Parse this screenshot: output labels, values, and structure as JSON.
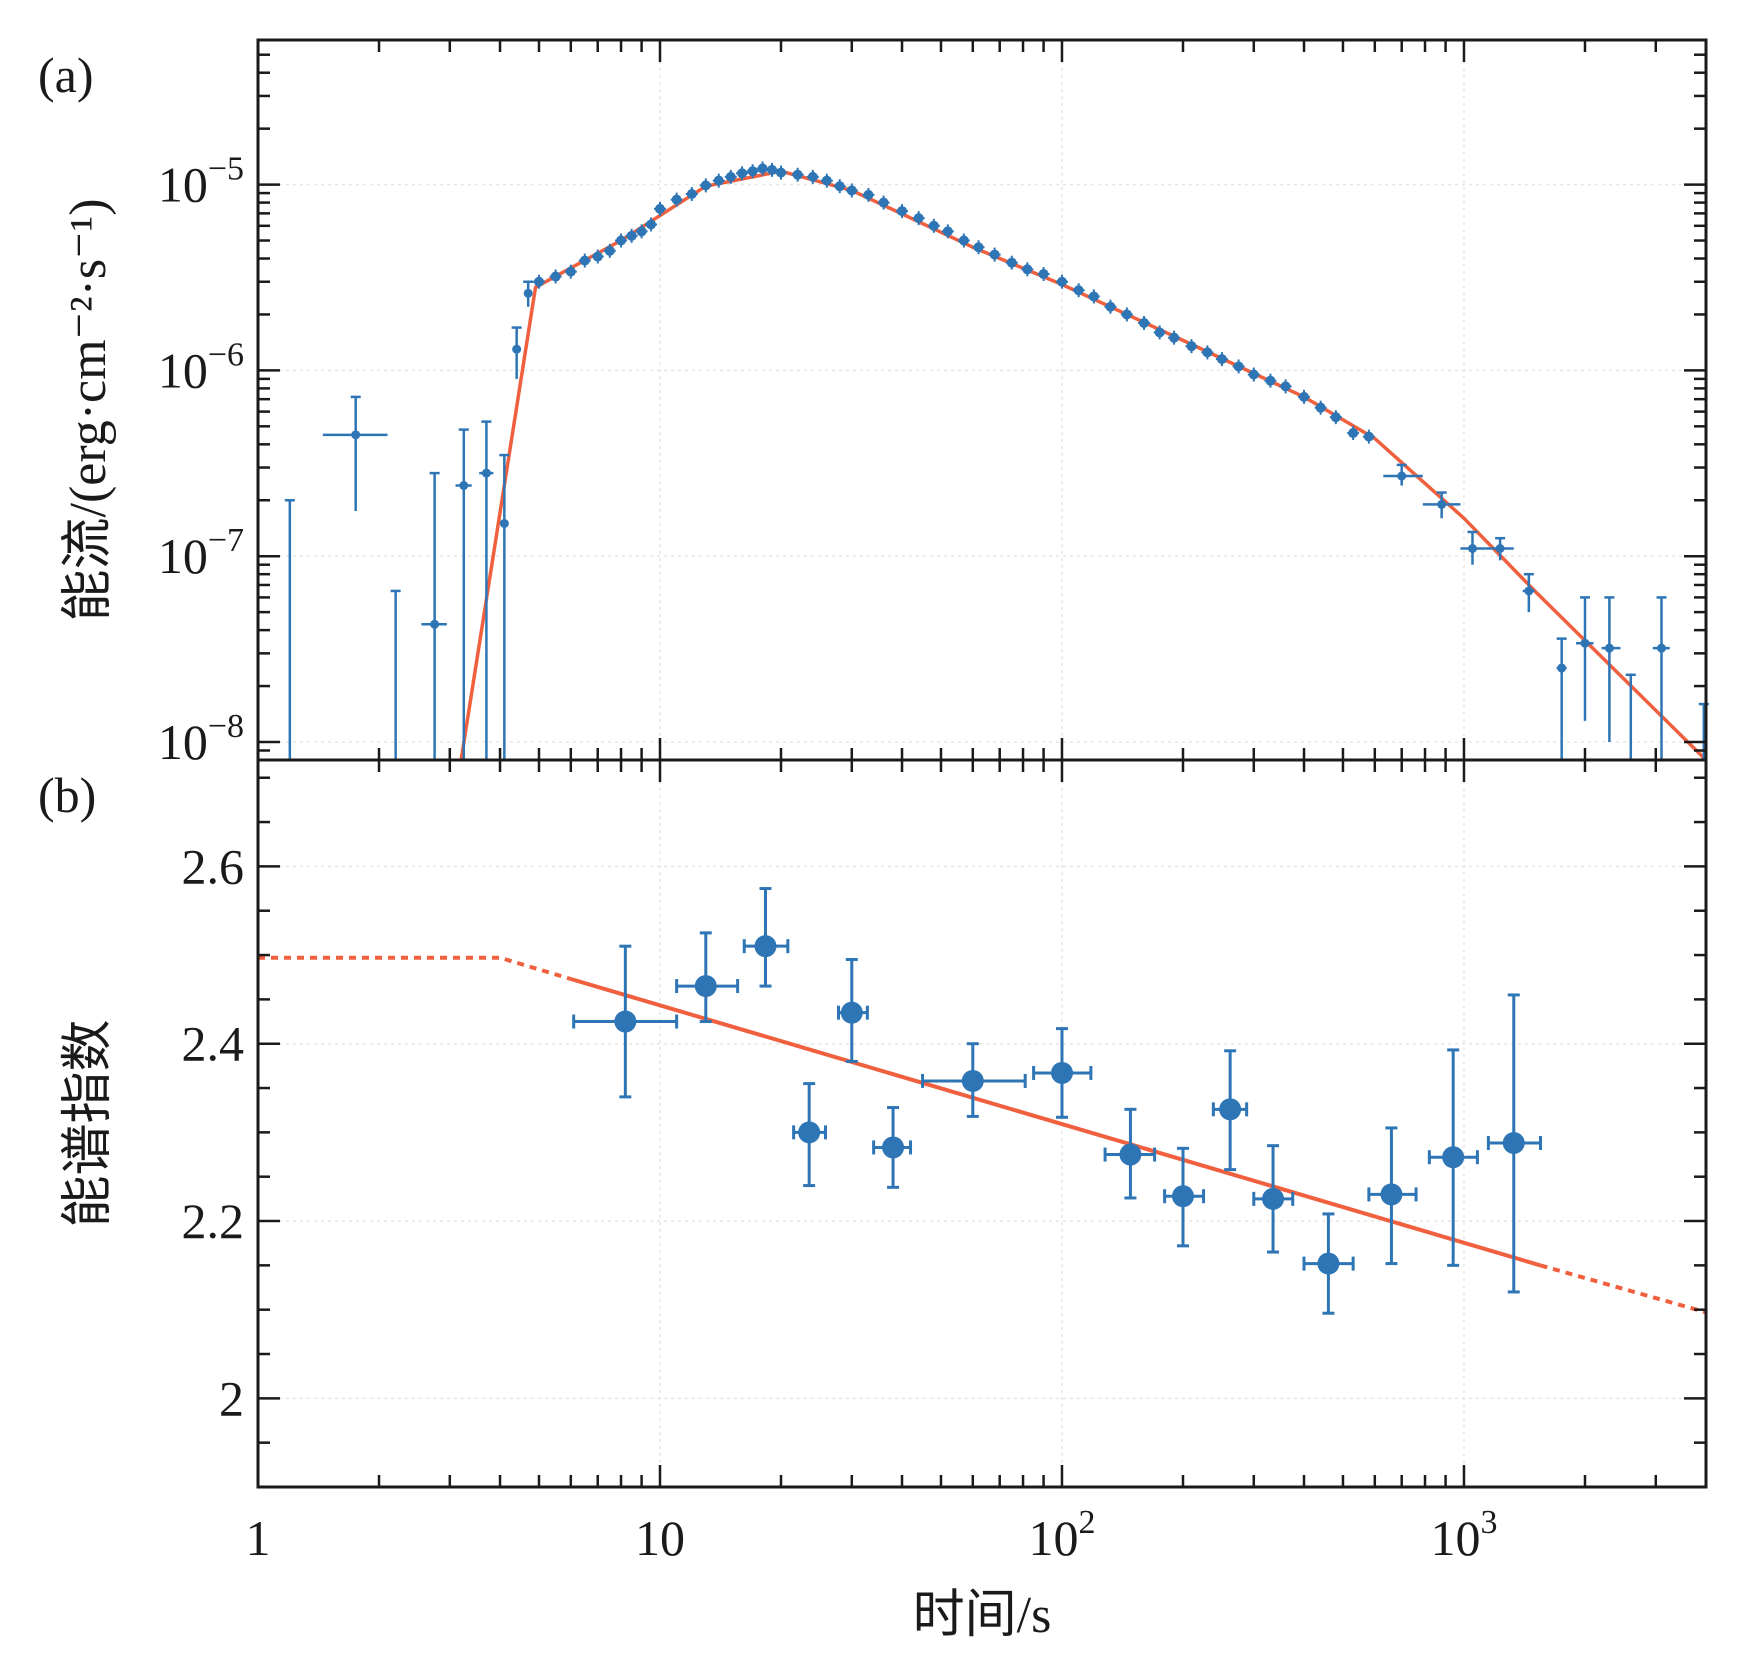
{
  "colors": {
    "data": "#2e75b6",
    "model": "#f0603f",
    "axis": "#1a1a1a",
    "grid": "#e6e6e6"
  },
  "chart_data": [
    {
      "panel": "a",
      "panel_tag": "(a)",
      "type": "scatter",
      "x_scale": "log",
      "y_scale": "log",
      "xlim": [
        1,
        4000
      ],
      "ylim": [
        8e-09,
        6e-05
      ],
      "ylabel": "能流/(erg·cm⁻²·s⁻¹)",
      "xlabel": "",
      "grid": true,
      "y_ticks": [
        {
          "value": 1e-05,
          "base": "10",
          "exp": "−5"
        },
        {
          "value": 1e-06,
          "base": "10",
          "exp": "−6"
        },
        {
          "value": 1e-07,
          "base": "10",
          "exp": "−7"
        },
        {
          "value": 1e-08,
          "base": "10",
          "exp": "−8"
        }
      ],
      "early_points": [
        {
          "x": 1.2,
          "y": 1e-09,
          "xerr": [
            0,
            0
          ],
          "yerr_hi": 2e-07,
          "yerr_lo": 1e-10
        },
        {
          "x": 1.75,
          "y": 4.5e-07,
          "xerr": [
            1.45,
            2.1
          ],
          "yerr_hi": 7.2e-07,
          "yerr_lo": 1.75e-07
        },
        {
          "x": 2.2,
          "y": 1e-09,
          "xerr": [
            2.2,
            2.2
          ],
          "yerr_hi": 6.5e-08,
          "yerr_lo": 1e-10
        },
        {
          "x": 2.75,
          "y": 4.3e-08,
          "xerr": [
            2.55,
            2.95
          ],
          "yerr_hi": 2.8e-07,
          "yerr_lo": 5e-09
        },
        {
          "x": 3.25,
          "y": 2.4e-07,
          "xerr": [
            3.1,
            3.4
          ],
          "yerr_hi": 4.8e-07,
          "yerr_lo": 5e-09
        },
        {
          "x": 3.7,
          "y": 2.8e-07,
          "xerr": [
            3.55,
            3.85
          ],
          "yerr_hi": 5.3e-07,
          "yerr_lo": 5e-09
        },
        {
          "x": 4.1,
          "y": 1.5e-07,
          "xerr": [
            4.0,
            4.2
          ],
          "yerr_hi": 3.5e-07,
          "yerr_lo": 5e-09
        },
        {
          "x": 4.4,
          "y": 1.3e-06,
          "xerr": [
            4.3,
            4.5
          ],
          "yerr_hi": 1.7e-06,
          "yerr_lo": 9e-07
        },
        {
          "x": 4.7,
          "y": 2.6e-06,
          "xerr": [
            4.6,
            4.8
          ],
          "yerr_hi": 3e-06,
          "yerr_lo": 2.2e-06
        }
      ],
      "dense_points": [
        [
          5.0,
          3e-06
        ],
        [
          5.5,
          3.2e-06
        ],
        [
          6.0,
          3.4e-06
        ],
        [
          6.5,
          3.9e-06
        ],
        [
          7.0,
          4.1e-06
        ],
        [
          7.5,
          4.4e-06
        ],
        [
          8.0,
          5e-06
        ],
        [
          8.5,
          5.3e-06
        ],
        [
          9.0,
          5.6e-06
        ],
        [
          9.5,
          6.1e-06
        ],
        [
          10.0,
          7.4e-06
        ],
        [
          11.0,
          8.3e-06
        ],
        [
          12.0,
          8.9e-06
        ],
        [
          13.0,
          9.9e-06
        ],
        [
          14.0,
          1.05e-05
        ],
        [
          15.0,
          1.1e-05
        ],
        [
          16.0,
          1.15e-05
        ],
        [
          17.0,
          1.18e-05
        ],
        [
          18.0,
          1.22e-05
        ],
        [
          19.0,
          1.2e-05
        ],
        [
          20.0,
          1.16e-05
        ],
        [
          22.0,
          1.13e-05
        ],
        [
          24.0,
          1.1e-05
        ],
        [
          26.0,
          1.05e-05
        ],
        [
          28.0,
          9.8e-06
        ],
        [
          30.0,
          9.3e-06
        ],
        [
          33.0,
          8.8e-06
        ],
        [
          36.0,
          8e-06
        ],
        [
          40.0,
          7.2e-06
        ],
        [
          44.0,
          6.6e-06
        ],
        [
          48.0,
          6e-06
        ],
        [
          52.0,
          5.6e-06
        ],
        [
          57.0,
          5e-06
        ],
        [
          62.0,
          4.6e-06
        ],
        [
          68.0,
          4.2e-06
        ],
        [
          75.0,
          3.8e-06
        ],
        [
          82.0,
          3.5e-06
        ],
        [
          90.0,
          3.3e-06
        ],
        [
          100.0,
          3e-06
        ],
        [
          110.0,
          2.7e-06
        ],
        [
          120.0,
          2.5e-06
        ],
        [
          132.0,
          2.2e-06
        ],
        [
          145.0,
          2e-06
        ],
        [
          160.0,
          1.8e-06
        ],
        [
          175.0,
          1.6e-06
        ],
        [
          190.0,
          1.5e-06
        ],
        [
          210.0,
          1.35e-06
        ],
        [
          230.0,
          1.25e-06
        ],
        [
          250.0,
          1.15e-06
        ],
        [
          275.0,
          1.05e-06
        ],
        [
          300.0,
          9.5e-07
        ],
        [
          330.0,
          8.8e-07
        ],
        [
          360.0,
          8.2e-07
        ],
        [
          400.0,
          7.2e-07
        ],
        [
          440.0,
          6.3e-07
        ],
        [
          480.0,
          5.6e-07
        ],
        [
          530.0,
          4.6e-07
        ],
        [
          580.0,
          4.4e-07
        ]
      ],
      "late_points": [
        {
          "x": 700,
          "y": 2.7e-07,
          "xerr": [
            630,
            790
          ],
          "yerr_hi": 3.1e-07,
          "yerr_lo": 2.4e-07
        },
        {
          "x": 880,
          "y": 1.9e-07,
          "xerr": [
            790,
            980
          ],
          "yerr_hi": 2.2e-07,
          "yerr_lo": 1.6e-07
        },
        {
          "x": 1050,
          "y": 1.1e-07,
          "xerr": [
            980,
            1130
          ],
          "yerr_hi": 1.35e-07,
          "yerr_lo": 9e-08
        },
        {
          "x": 1230,
          "y": 1.1e-07,
          "xerr": [
            1130,
            1330
          ],
          "yerr_hi": 1.25e-07,
          "yerr_lo": 9.5e-08
        },
        {
          "x": 1450,
          "y": 6.5e-08,
          "xerr": [
            1400,
            1500
          ],
          "yerr_hi": 8e-08,
          "yerr_lo": 5e-08
        },
        {
          "x": 1750,
          "y": 2.5e-08,
          "xerr": [
            1700,
            1800
          ],
          "yerr_hi": 3.6e-08,
          "yerr_lo": 5e-09
        },
        {
          "x": 2000,
          "y": 3.4e-08,
          "xerr": [
            1900,
            2100
          ],
          "yerr_hi": 6e-08,
          "yerr_lo": 1.3e-08
        },
        {
          "x": 2300,
          "y": 3.2e-08,
          "xerr": [
            2200,
            2450
          ],
          "yerr_hi": 6e-08,
          "yerr_lo": 1e-08
        },
        {
          "x": 2600,
          "y": 1e-09,
          "xerr": [
            2600,
            2600
          ],
          "yerr_hi": 2.3e-08,
          "yerr_lo": 1e-10
        },
        {
          "x": 3100,
          "y": 3.2e-08,
          "xerr": [
            2950,
            3250
          ],
          "yerr_hi": 6e-08,
          "yerr_lo": 5e-09
        },
        {
          "x": 3950,
          "y": 1e-09,
          "xerr": [
            3950,
            3950
          ],
          "yerr_hi": 1.6e-08,
          "yerr_lo": 1e-10
        }
      ],
      "model_line": [
        [
          3.2,
          7.5e-09
        ],
        [
          4.9,
          2.8e-06
        ],
        [
          8.0,
          5e-06
        ],
        [
          13.0,
          9.8e-06
        ],
        [
          20.0,
          1.18e-05
        ],
        [
          30.0,
          9.3e-06
        ],
        [
          60.0,
          4.6e-06
        ],
        [
          100.0,
          2.9e-06
        ],
        [
          200.0,
          1.45e-06
        ],
        [
          400.0,
          7.2e-07
        ],
        [
          600.0,
          4.3e-07
        ],
        [
          1000.0,
          1.6e-07
        ],
        [
          1500.0,
          6.5e-08
        ],
        [
          4000.0,
          7.5e-09
        ]
      ]
    },
    {
      "panel": "b",
      "panel_tag": "(b)",
      "type": "scatter",
      "x_scale": "log",
      "y_scale": "linear",
      "xlim": [
        1,
        4000
      ],
      "ylim": [
        1.9,
        2.72
      ],
      "ylabel": "能谱指数",
      "xlabel": "时间/s",
      "grid": true,
      "y_ticks": [
        {
          "value": 2.6,
          "label": "2.6"
        },
        {
          "value": 2.4,
          "label": "2.4"
        },
        {
          "value": 2.2,
          "label": "2.2"
        },
        {
          "value": 2.0,
          "label": "2"
        }
      ],
      "x_ticks": [
        {
          "value": 1,
          "base": "1",
          "exp": ""
        },
        {
          "value": 10,
          "base": "10",
          "exp": ""
        },
        {
          "value": 100,
          "base": "10",
          "exp": "2"
        },
        {
          "value": 1000,
          "base": "10",
          "exp": "3"
        }
      ],
      "points": [
        {
          "x": 8.2,
          "y": 2.425,
          "xerr": [
            6.1,
            11.0
          ],
          "yerr": [
            2.34,
            2.51
          ]
        },
        {
          "x": 13.0,
          "y": 2.465,
          "xerr": [
            11.0,
            15.6
          ],
          "yerr": [
            2.425,
            2.525
          ]
        },
        {
          "x": 18.3,
          "y": 2.51,
          "xerr": [
            16.2,
            20.8
          ],
          "yerr": [
            2.465,
            2.575
          ]
        },
        {
          "x": 23.5,
          "y": 2.3,
          "xerr": [
            21.5,
            25.8
          ],
          "yerr": [
            2.24,
            2.355
          ]
        },
        {
          "x": 30.0,
          "y": 2.435,
          "xerr": [
            27.8,
            32.8
          ],
          "yerr": [
            2.38,
            2.495
          ]
        },
        {
          "x": 38.0,
          "y": 2.283,
          "xerr": [
            34.0,
            42.0
          ],
          "yerr": [
            2.238,
            2.328
          ]
        },
        {
          "x": 60.0,
          "y": 2.358,
          "xerr": [
            45.0,
            81.0
          ],
          "yerr": [
            2.318,
            2.4
          ]
        },
        {
          "x": 100.0,
          "y": 2.367,
          "xerr": [
            85.0,
            118.0
          ],
          "yerr": [
            2.317,
            2.417
          ]
        },
        {
          "x": 148.0,
          "y": 2.275,
          "xerr": [
            128.0,
            170.0
          ],
          "yerr": [
            2.226,
            2.326
          ]
        },
        {
          "x": 200.0,
          "y": 2.228,
          "xerr": [
            180.0,
            225.0
          ],
          "yerr": [
            2.172,
            2.282
          ]
        },
        {
          "x": 262.0,
          "y": 2.326,
          "xerr": [
            238.0,
            288.0
          ],
          "yerr": [
            2.258,
            2.392
          ]
        },
        {
          "x": 335.0,
          "y": 2.225,
          "xerr": [
            300.0,
            375.0
          ],
          "yerr": [
            2.165,
            2.285
          ]
        },
        {
          "x": 460.0,
          "y": 2.152,
          "xerr": [
            400.0,
            530.0
          ],
          "yerr": [
            2.096,
            2.208
          ]
        },
        {
          "x": 660.0,
          "y": 2.23,
          "xerr": [
            580.0,
            760.0
          ],
          "yerr": [
            2.152,
            2.305
          ]
        },
        {
          "x": 940.0,
          "y": 2.272,
          "xerr": [
            820.0,
            1080.0
          ],
          "yerr": [
            2.15,
            2.393
          ]
        },
        {
          "x": 1330.0,
          "y": 2.288,
          "xerr": [
            1150.0,
            1550.0
          ],
          "yerr": [
            2.12,
            2.455
          ]
        }
      ],
      "model_dashed": [
        [
          1.0,
          2.497
        ],
        [
          4.0,
          2.497
        ],
        [
          6.0,
          2.473
        ]
      ],
      "model_solid": [
        [
          6.0,
          2.473
        ],
        [
          1550.0,
          2.15
        ]
      ],
      "model_dashed_tail": [
        [
          1550.0,
          2.15
        ],
        [
          4000.0,
          2.097
        ]
      ]
    }
  ]
}
